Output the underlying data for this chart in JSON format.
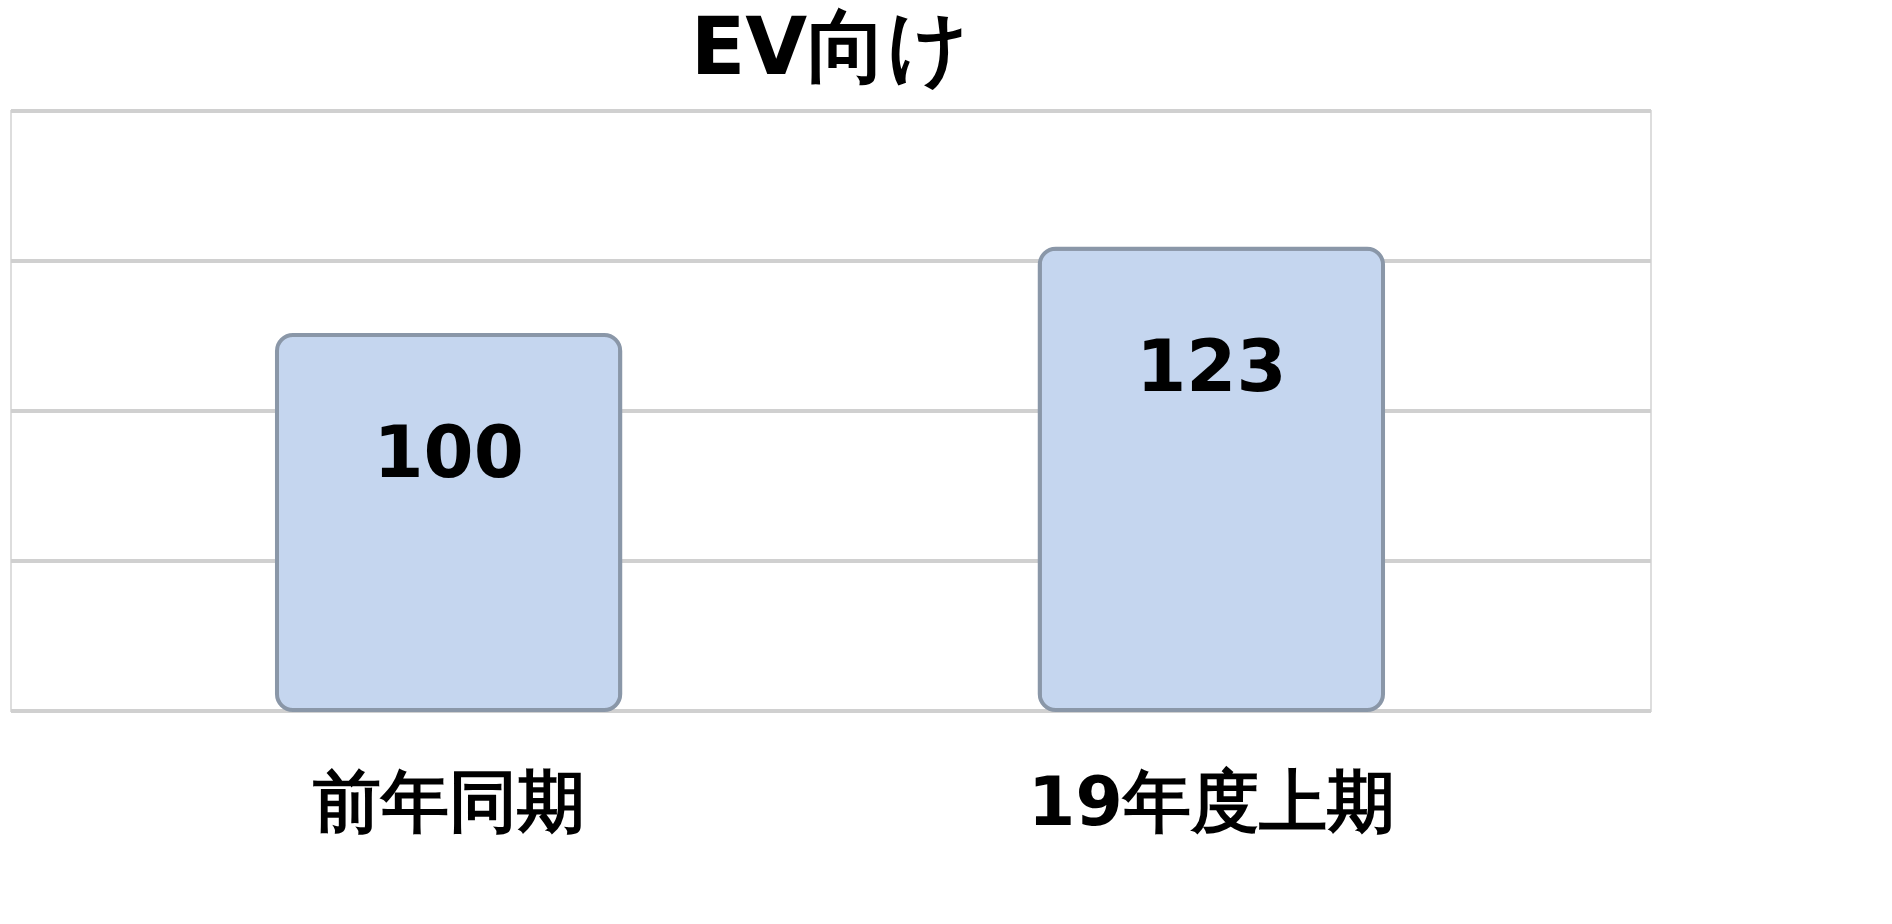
{
  "chart_data": {
    "type": "bar",
    "title": "EV向け",
    "categories": [
      "前年同期",
      "19年度上期"
    ],
    "values": [
      100,
      123
    ],
    "color": "#c5d6ef",
    "ylim": [
      0,
      160
    ],
    "yticks": [
      {
        "value": 0,
        "label": null
      },
      {
        "value": 40,
        "label": null
      },
      {
        "value": 80,
        "label": null
      },
      {
        "value": 120,
        "label": null
      },
      {
        "value": 160,
        "label": null
      }
    ],
    "grid": "y",
    "data_labels": true,
    "tick_labels": "x"
  }
}
